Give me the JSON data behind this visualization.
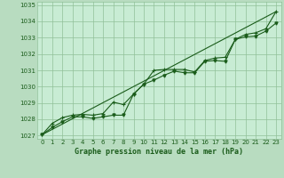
{
  "title": "Graphe pression niveau de la mer (hPa)",
  "bg_color": "#b8dcc0",
  "plot_bg_color": "#c8ecd4",
  "grid_color": "#90c098",
  "line_color": "#1a5c1a",
  "text_color": "#1a5c1a",
  "xlim": [
    -0.5,
    23.5
  ],
  "ylim": [
    1026.8,
    1035.2
  ],
  "yticks": [
    1027,
    1028,
    1029,
    1030,
    1031,
    1032,
    1033,
    1034,
    1035
  ],
  "xticks": [
    0,
    1,
    2,
    3,
    4,
    5,
    6,
    7,
    8,
    9,
    10,
    11,
    12,
    13,
    14,
    15,
    16,
    17,
    18,
    19,
    20,
    21,
    22,
    23
  ],
  "series": {
    "smooth_line": [
      [
        0,
        1027.05
      ],
      [
        23,
        1034.6
      ]
    ],
    "actual": [
      [
        0,
        1027.05
      ],
      [
        1,
        1027.75
      ],
      [
        2,
        1028.1
      ],
      [
        3,
        1028.25
      ],
      [
        4,
        1028.3
      ],
      [
        5,
        1028.25
      ],
      [
        6,
        1028.35
      ],
      [
        7,
        1029.05
      ],
      [
        8,
        1028.9
      ],
      [
        9,
        1029.55
      ],
      [
        10,
        1030.15
      ],
      [
        11,
        1031.0
      ],
      [
        12,
        1031.05
      ],
      [
        13,
        1031.05
      ],
      [
        14,
        1031.05
      ],
      [
        15,
        1030.9
      ],
      [
        16,
        1031.6
      ],
      [
        17,
        1031.75
      ],
      [
        18,
        1031.8
      ],
      [
        19,
        1032.9
      ],
      [
        20,
        1033.2
      ],
      [
        21,
        1033.3
      ],
      [
        22,
        1033.55
      ],
      [
        23,
        1034.6
      ]
    ],
    "lower": [
      [
        0,
        1027.05
      ],
      [
        1,
        1027.5
      ],
      [
        2,
        1027.85
      ],
      [
        3,
        1028.15
      ],
      [
        4,
        1028.15
      ],
      [
        5,
        1028.05
      ],
      [
        6,
        1028.15
      ],
      [
        7,
        1028.25
      ],
      [
        8,
        1028.25
      ],
      [
        9,
        1029.55
      ],
      [
        10,
        1030.15
      ],
      [
        11,
        1030.4
      ],
      [
        12,
        1030.7
      ],
      [
        13,
        1030.95
      ],
      [
        14,
        1030.85
      ],
      [
        15,
        1030.85
      ],
      [
        16,
        1031.55
      ],
      [
        17,
        1031.6
      ],
      [
        18,
        1031.55
      ],
      [
        19,
        1032.9
      ],
      [
        20,
        1033.05
      ],
      [
        21,
        1033.1
      ],
      [
        22,
        1033.4
      ],
      [
        23,
        1033.9
      ]
    ]
  }
}
